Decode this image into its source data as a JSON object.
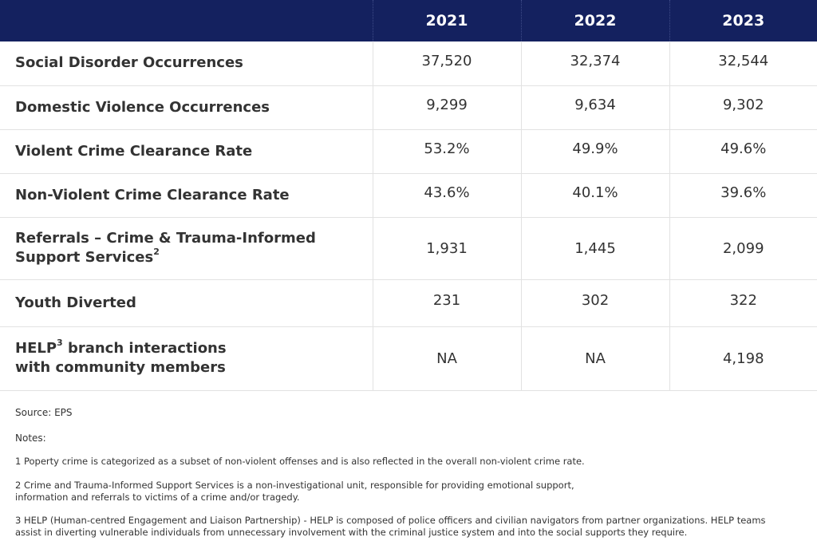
{
  "table": {
    "years": [
      "2021",
      "2022",
      "2023"
    ],
    "rows": [
      {
        "label_lines": [
          "Social Disorder Occurrences"
        ],
        "sup": "",
        "values": [
          "37,520",
          "32,374",
          "32,544"
        ]
      },
      {
        "label_lines": [
          "Domestic Violence Occurrences"
        ],
        "sup": "",
        "values": [
          "9,299",
          "9,634",
          "9,302"
        ]
      },
      {
        "label_lines": [
          "Violent Crime Clearance Rate"
        ],
        "sup": "",
        "values": [
          "53.2%",
          "49.9%",
          "49.6%"
        ]
      },
      {
        "label_lines": [
          "Non-Violent Crime Clearance Rate"
        ],
        "sup": "",
        "values": [
          "43.6%",
          "40.1%",
          "39.6%"
        ]
      },
      {
        "label_lines": [
          "Referrals – Crime & Trauma-Informed",
          "Support Services"
        ],
        "sup": "2",
        "values": [
          "1,931",
          "1,445",
          "2,099"
        ]
      },
      {
        "label_lines": [
          "Youth Diverted"
        ],
        "sup": "",
        "values": [
          "231",
          "302",
          "322"
        ]
      },
      {
        "label_lines": [
          "HELP",
          "with community members"
        ],
        "sup_first": "3",
        "first_line_rest": " branch interactions",
        "values": [
          "NA",
          "NA",
          "4,198"
        ]
      }
    ]
  },
  "footer": {
    "source": "Source: EPS",
    "notes_heading": "Notes:",
    "note1": "1 Poperty crime is categorized as a subset of non-violent offenses and is also reflected in the overall non-violent crime rate.",
    "note2_lines": [
      "2 Crime and Trauma-Informed Support Services is a non-investigational unit, responsible for providing emotional support,",
      "information and referrals to victims of a crime and/or tragedy."
    ],
    "note3_lines": [
      "3 HELP (Human-centred Engagement and Liaison Partnership) - HELP is composed of police officers and civilian navigators from partner organizations. HELP teams",
      "assist in diverting vulnerable individuals from unnecessary involvement with the criminal justice system and into the social supports they require."
    ]
  }
}
